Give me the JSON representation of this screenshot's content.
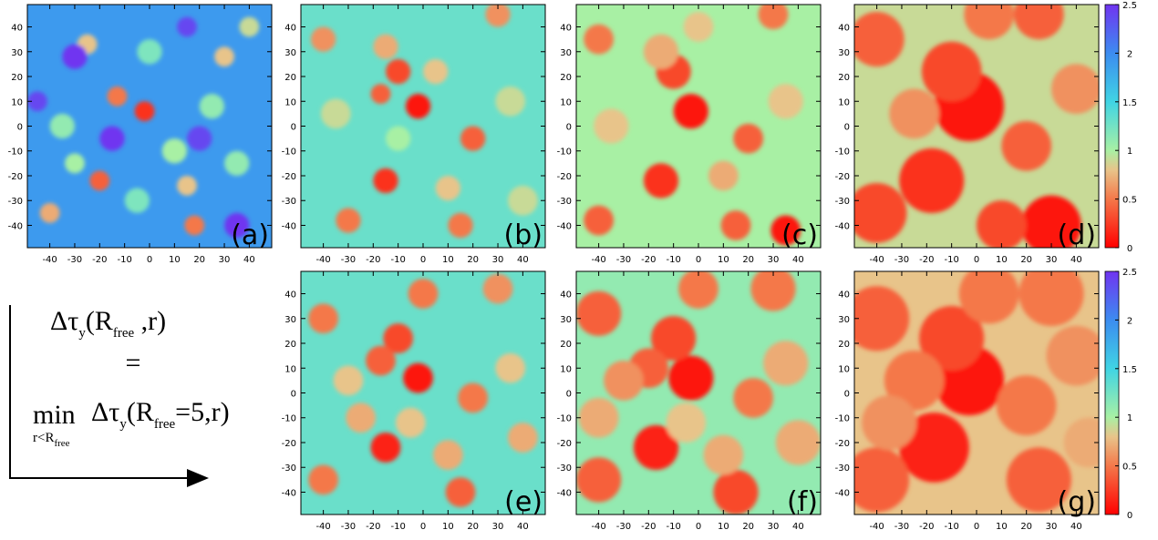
{
  "chart_data": [
    {
      "type": "heatmap",
      "label": "(a)",
      "xlim": [
        -49,
        49
      ],
      "ylim": [
        -49,
        49
      ],
      "xticks": [
        -40,
        -30,
        -20,
        -10,
        0,
        10,
        20,
        30,
        40
      ],
      "yticks": [
        -40,
        -30,
        -20,
        -10,
        0,
        10,
        20,
        30,
        40
      ],
      "background": 1.9,
      "blobs": [
        [
          -2,
          6,
          4,
          0.2
        ],
        [
          -20,
          -22,
          4,
          0.4
        ],
        [
          -13,
          12,
          4,
          0.5
        ],
        [
          18,
          -40,
          4,
          0.5
        ],
        [
          -40,
          -35,
          4,
          0.7
        ],
        [
          15,
          -24,
          4,
          0.8
        ],
        [
          -25,
          33,
          4,
          0.8
        ],
        [
          30,
          28,
          4,
          0.8
        ],
        [
          -35,
          0,
          5,
          1.1
        ],
        [
          10,
          -10,
          5,
          1.0
        ],
        [
          -5,
          -30,
          5,
          1.2
        ],
        [
          35,
          -15,
          5,
          1.1
        ],
        [
          0,
          30,
          5,
          1.2
        ],
        [
          25,
          8,
          5,
          1.1
        ],
        [
          -30,
          -15,
          4,
          1.0
        ],
        [
          40,
          40,
          4,
          0.9
        ],
        [
          -30,
          28,
          5,
          2.5
        ],
        [
          -15,
          -5,
          5,
          2.5
        ],
        [
          20,
          -5,
          5,
          2.4
        ],
        [
          15,
          40,
          4,
          2.4
        ],
        [
          -45,
          10,
          4,
          2.4
        ],
        [
          35,
          -40,
          5,
          2.5
        ]
      ]
    },
    {
      "type": "heatmap",
      "label": "(b)",
      "xlim": [
        -49,
        49
      ],
      "ylim": [
        -49,
        49
      ],
      "xticks": [
        -40,
        -30,
        -20,
        -10,
        0,
        10,
        20,
        30,
        40
      ],
      "yticks": [
        -40,
        -30,
        -20,
        -10,
        0,
        10,
        20,
        30,
        40
      ],
      "background": 1.3,
      "blobs": [
        [
          -2,
          8,
          5,
          0.1
        ],
        [
          -10,
          22,
          5,
          0.3
        ],
        [
          -17,
          13,
          4,
          0.4
        ],
        [
          -15,
          -22,
          5,
          0.2
        ],
        [
          20,
          -5,
          5,
          0.4
        ],
        [
          -40,
          35,
          5,
          0.6
        ],
        [
          -30,
          -38,
          5,
          0.5
        ],
        [
          15,
          -40,
          5,
          0.5
        ],
        [
          30,
          45,
          5,
          0.6
        ],
        [
          -15,
          32,
          5,
          0.7
        ],
        [
          5,
          22,
          5,
          0.8
        ],
        [
          35,
          10,
          6,
          0.9
        ],
        [
          10,
          -25,
          5,
          0.8
        ],
        [
          -35,
          5,
          6,
          0.9
        ],
        [
          40,
          -30,
          6,
          0.9
        ],
        [
          -10,
          -5,
          5,
          1.0
        ]
      ]
    },
    {
      "type": "heatmap",
      "label": "(c)",
      "xlim": [
        -49,
        49
      ],
      "ylim": [
        -49,
        49
      ],
      "xticks": [
        -40,
        -30,
        -20,
        -10,
        0,
        10,
        20,
        30,
        40
      ],
      "yticks": [
        -40,
        -30,
        -20,
        -10,
        0,
        10,
        20,
        30,
        40
      ],
      "background": 1.0,
      "blobs": [
        [
          -3,
          6,
          7,
          0.1
        ],
        [
          -10,
          22,
          7,
          0.3
        ],
        [
          -15,
          -22,
          7,
          0.2
        ],
        [
          20,
          -5,
          6,
          0.4
        ],
        [
          -40,
          35,
          6,
          0.5
        ],
        [
          -40,
          -38,
          6,
          0.4
        ],
        [
          15,
          -40,
          6,
          0.4
        ],
        [
          35,
          -42,
          6,
          0.1
        ],
        [
          30,
          45,
          6,
          0.5
        ],
        [
          -15,
          30,
          7,
          0.7
        ],
        [
          10,
          -20,
          6,
          0.7
        ],
        [
          35,
          10,
          7,
          0.8
        ],
        [
          -35,
          0,
          7,
          0.8
        ],
        [
          0,
          40,
          6,
          0.8
        ]
      ]
    },
    {
      "type": "heatmap",
      "label": "(d)",
      "xlim": [
        -49,
        49
      ],
      "ylim": [
        -49,
        49
      ],
      "xticks": [
        -40,
        -30,
        -20,
        -10,
        0,
        10,
        20,
        30,
        40
      ],
      "yticks": [
        -40,
        -30,
        -20,
        -10,
        0,
        10,
        20,
        30,
        40
      ],
      "background": 0.9,
      "blobs": [
        [
          -3,
          8,
          14,
          0.1
        ],
        [
          -18,
          -22,
          13,
          0.2
        ],
        [
          -10,
          22,
          12,
          0.3
        ],
        [
          30,
          -40,
          12,
          0.1
        ],
        [
          -40,
          -35,
          12,
          0.3
        ],
        [
          -40,
          35,
          11,
          0.4
        ],
        [
          25,
          45,
          10,
          0.4
        ],
        [
          20,
          -8,
          10,
          0.4
        ],
        [
          10,
          -40,
          10,
          0.3
        ],
        [
          40,
          15,
          10,
          0.6
        ],
        [
          -25,
          5,
          10,
          0.6
        ],
        [
          5,
          45,
          10,
          0.5
        ]
      ],
      "colorbar": {
        "zlim": [
          0,
          2.5
        ],
        "zticks": [
          0,
          0.5,
          1,
          1.5,
          2,
          2.5
        ]
      }
    },
    {
      "type": "heatmap",
      "label": "(e)",
      "xlim": [
        -49,
        49
      ],
      "ylim": [
        -49,
        49
      ],
      "xticks": [
        -40,
        -30,
        -20,
        -10,
        0,
        10,
        20,
        30,
        40
      ],
      "yticks": [
        -40,
        -30,
        -20,
        -10,
        0,
        10,
        20,
        30,
        40
      ],
      "background": 1.3,
      "blobs": [
        [
          -2,
          6,
          6,
          0.1
        ],
        [
          -10,
          22,
          6,
          0.3
        ],
        [
          -17,
          13,
          6,
          0.4
        ],
        [
          -15,
          -22,
          6,
          0.15
        ],
        [
          20,
          -2,
          6,
          0.5
        ],
        [
          -40,
          30,
          6,
          0.5
        ],
        [
          -40,
          -35,
          6,
          0.5
        ],
        [
          15,
          -40,
          6,
          0.4
        ],
        [
          30,
          42,
          6,
          0.6
        ],
        [
          0,
          40,
          6,
          0.5
        ],
        [
          40,
          -18,
          6,
          0.7
        ],
        [
          -5,
          -12,
          6,
          0.8
        ],
        [
          10,
          -25,
          6,
          0.7
        ],
        [
          35,
          10,
          6,
          0.8
        ],
        [
          -30,
          5,
          6,
          0.8
        ],
        [
          -25,
          -10,
          6,
          0.7
        ]
      ]
    },
    {
      "type": "heatmap",
      "label": "(f)",
      "xlim": [
        -49,
        49
      ],
      "ylim": [
        -49,
        49
      ],
      "xticks": [
        -40,
        -30,
        -20,
        -10,
        0,
        10,
        20,
        30,
        40
      ],
      "yticks": [
        -40,
        -30,
        -20,
        -10,
        0,
        10,
        20,
        30,
        40
      ],
      "background": 1.1,
      "blobs": [
        [
          -3,
          6,
          9,
          0.1
        ],
        [
          -10,
          22,
          9,
          0.3
        ],
        [
          -20,
          10,
          8,
          0.4
        ],
        [
          -17,
          -22,
          9,
          0.15
        ],
        [
          22,
          -2,
          8,
          0.5
        ],
        [
          -40,
          32,
          9,
          0.4
        ],
        [
          -40,
          -35,
          9,
          0.4
        ],
        [
          15,
          -40,
          9,
          0.3
        ],
        [
          30,
          42,
          9,
          0.5
        ],
        [
          0,
          42,
          8,
          0.5
        ],
        [
          40,
          -20,
          9,
          0.7
        ],
        [
          -5,
          -12,
          8,
          0.8
        ],
        [
          10,
          -25,
          8,
          0.7
        ],
        [
          35,
          12,
          9,
          0.7
        ],
        [
          -30,
          5,
          8,
          0.6
        ],
        [
          -40,
          -10,
          8,
          0.7
        ]
      ]
    },
    {
      "type": "heatmap",
      "label": "(g)",
      "xlim": [
        -49,
        49
      ],
      "ylim": [
        -49,
        49
      ],
      "xticks": [
        -40,
        -30,
        -20,
        -10,
        0,
        10,
        20,
        30,
        40
      ],
      "yticks": [
        -40,
        -30,
        -20,
        -10,
        0,
        10,
        20,
        30,
        40
      ],
      "background": 0.8,
      "blobs": [
        [
          -3,
          5,
          14,
          0.1
        ],
        [
          -17,
          -22,
          14,
          0.15
        ],
        [
          -10,
          22,
          13,
          0.3
        ],
        [
          25,
          -35,
          13,
          0.4
        ],
        [
          -40,
          -35,
          13,
          0.4
        ],
        [
          -40,
          30,
          13,
          0.4
        ],
        [
          30,
          40,
          13,
          0.5
        ],
        [
          5,
          40,
          12,
          0.5
        ],
        [
          20,
          -5,
          12,
          0.5
        ],
        [
          40,
          15,
          12,
          0.6
        ],
        [
          -25,
          5,
          12,
          0.5
        ],
        [
          -35,
          -12,
          11,
          0.6
        ],
        [
          45,
          -20,
          10,
          0.7
        ]
      ],
      "colorbar": {
        "zlim": [
          0,
          2.5
        ],
        "zticks": [
          0,
          0.5,
          1,
          1.5,
          2,
          2.5
        ]
      }
    }
  ],
  "colormap": [
    {
      "value": 0,
      "color": "#ff0000"
    },
    {
      "value": 0.5,
      "color": "#f4784a"
    },
    {
      "value": 0.8,
      "color": "#e8c48a"
    },
    {
      "value": 1,
      "color": "#a8f0a4"
    },
    {
      "value": 1.5,
      "color": "#40d4e4"
    },
    {
      "value": 2,
      "color": "#3c8cf0"
    },
    {
      "value": 2.5,
      "color": "#7034f0"
    }
  ],
  "equation": {
    "lhs_symbol": "Δτ",
    "lhs_sub": "y",
    "lhs_open": "(R",
    "lhs_arg_sub": "free",
    "lhs_close": " ,r)",
    "equals": "=",
    "min": "min",
    "min_sub": "r<R",
    "min_sub_sub": "free",
    "rhs_symbol": "Δτ",
    "rhs_sub": "y",
    "rhs_open": "(R",
    "rhs_arg_sub": "free",
    "rhs_close": "=5,r)"
  }
}
